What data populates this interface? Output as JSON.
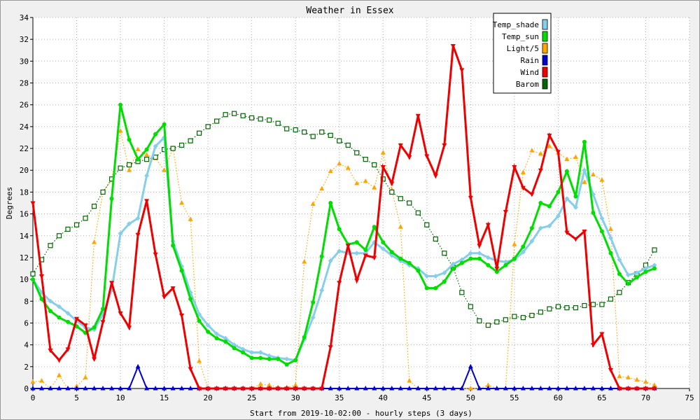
{
  "chart_data": {
    "type": "line",
    "title": "Weather in Essex",
    "xlabel": "Start from 2019-10-02:00 - hourly steps (3 days)",
    "ylabel": "Degrees",
    "xlim": [
      0,
      75
    ],
    "ylim": [
      0,
      34
    ],
    "x_ticks": [
      0,
      5,
      10,
      15,
      20,
      25,
      30,
      35,
      40,
      45,
      50,
      55,
      60,
      65,
      70,
      75
    ],
    "y_ticks": [
      0,
      2,
      4,
      6,
      8,
      10,
      12,
      14,
      16,
      18,
      20,
      22,
      24,
      26,
      28,
      30,
      32,
      34
    ],
    "grid": true,
    "legend_position": "top-right",
    "x": [
      0,
      1,
      2,
      3,
      4,
      5,
      6,
      7,
      8,
      9,
      10,
      11,
      12,
      13,
      14,
      15,
      16,
      17,
      18,
      19,
      20,
      21,
      22,
      23,
      24,
      25,
      26,
      27,
      28,
      29,
      30,
      31,
      32,
      33,
      34,
      35,
      36,
      37,
      38,
      39,
      40,
      41,
      42,
      43,
      44,
      45,
      46,
      47,
      48,
      49,
      50,
      51,
      52,
      53,
      54,
      55,
      56,
      57,
      58,
      59,
      60,
      61,
      62,
      63,
      64,
      65,
      66,
      67,
      68,
      69,
      70,
      71
    ],
    "series": [
      {
        "name": "Temp_shade",
        "color": "#87ceeb",
        "marker": "diamond",
        "values": [
          10,
          8.8,
          8,
          7.5,
          6.9,
          6.2,
          5.6,
          5.4,
          6.8,
          9,
          14.2,
          15.1,
          15.6,
          19.5,
          22.2,
          23,
          13.5,
          11.2,
          8.8,
          6.8,
          5.8,
          5,
          4.6,
          4,
          3.6,
          3.3,
          3.3,
          3,
          2.8,
          2.7,
          2.6,
          4.5,
          6.5,
          9,
          11.7,
          12.6,
          12.4,
          12.4,
          12.4,
          13.4,
          12.8,
          12.2,
          11.7,
          11.3,
          11,
          10.3,
          10.3,
          10.6,
          11.4,
          11.8,
          12.4,
          12.4,
          12,
          11.7,
          11.6,
          11.8,
          12.5,
          13.5,
          14.7,
          14.9,
          15.8,
          17.4,
          16.6,
          20,
          17.8,
          15.6,
          13.8,
          11.8,
          10.4,
          10.6,
          11,
          11.3
        ]
      },
      {
        "name": "Temp_sun",
        "color": "#00dd00",
        "marker": "circle",
        "values": [
          10,
          8.2,
          7.1,
          6.5,
          6.1,
          5.7,
          5.1,
          5.6,
          7.3,
          17.4,
          26,
          22.8,
          21,
          21.9,
          23.3,
          24.2,
          13.1,
          10.8,
          8.2,
          6.2,
          5.2,
          4.6,
          4.3,
          3.7,
          3.3,
          2.8,
          2.8,
          2.7,
          2.7,
          2.2,
          2.6,
          4.7,
          7.9,
          12.1,
          17,
          14.6,
          13.2,
          13.4,
          12.7,
          14.8,
          13.4,
          12.5,
          11.9,
          11.5,
          10.8,
          9.2,
          9.2,
          9.8,
          11,
          11.5,
          11.9,
          11.9,
          11.3,
          10.7,
          11.3,
          11.9,
          13,
          14.7,
          17,
          16.7,
          18,
          19.9,
          17.6,
          22.6,
          16.1,
          14.4,
          12.4,
          10.5,
          9.6,
          10.2,
          10.7,
          11
        ]
      },
      {
        "name": "Light/5",
        "color": "#ffa500",
        "marker": "triangle-up",
        "values": [
          0.6,
          0.7,
          0,
          1.2,
          0,
          0.2,
          1,
          13.4,
          18,
          19.1,
          23.6,
          20,
          21.9,
          21.4,
          21.1,
          20,
          22,
          17,
          15.5,
          2.5,
          0,
          0,
          0,
          0,
          0,
          0,
          0.4,
          0.3,
          0.1,
          0.1,
          0.3,
          11.6,
          16.9,
          18.3,
          19.9,
          20.6,
          20.2,
          18.8,
          19,
          18.4,
          21.6,
          18.2,
          14.8,
          0.7,
          0,
          0,
          0,
          0,
          0,
          0,
          0,
          0,
          0.3,
          0,
          0,
          13.2,
          19.8,
          21.8,
          21.5,
          22.2,
          21.6,
          21,
          21.2,
          18.9,
          19.6,
          19.1,
          14.6,
          1.1,
          1,
          0.8,
          0.6,
          0.3
        ]
      },
      {
        "name": "Rain",
        "color": "#0000cc",
        "marker": "triangle-up",
        "values": [
          0,
          0,
          0,
          0,
          0,
          0,
          0,
          0,
          0,
          0,
          0,
          0,
          2,
          0,
          0,
          0,
          0,
          0,
          0,
          0,
          0,
          0,
          0,
          0,
          0,
          0,
          0,
          0,
          0,
          0,
          0,
          0,
          0,
          0,
          0,
          0,
          0,
          0,
          0,
          0,
          0,
          0,
          0,
          0,
          0,
          0,
          0,
          0,
          0,
          0,
          2,
          0,
          0,
          0,
          0,
          0,
          0,
          0,
          0,
          0,
          0,
          0,
          0,
          0,
          0,
          0,
          0,
          0,
          0,
          0,
          0,
          0
        ]
      },
      {
        "name": "Wind",
        "color": "#ee0000",
        "marker": "triangle-down",
        "values": [
          17,
          10.3,
          3.5,
          2.6,
          3.6,
          6.4,
          5.8,
          2.7,
          6.1,
          9.7,
          6.9,
          5.6,
          14.1,
          17.2,
          12.3,
          8.4,
          9.2,
          6.7,
          1.8,
          0,
          0,
          0,
          0,
          0,
          0,
          0,
          0,
          0,
          0,
          0,
          0,
          0,
          0,
          0,
          3.8,
          9.7,
          13.1,
          9.9,
          12.2,
          12,
          20.3,
          18.8,
          22.3,
          21.2,
          25,
          21.3,
          19.5,
          22.3,
          31.4,
          29.2,
          17.5,
          13.1,
          15,
          11,
          16.2,
          20.3,
          18.4,
          17.8,
          20,
          23.2,
          21.7,
          14.3,
          13.7,
          14.4,
          4,
          5,
          1.7,
          0,
          0,
          0,
          0,
          0
        ]
      },
      {
        "name": "Barom",
        "color": "#006600",
        "marker": "square",
        "values": [
          10.5,
          11.8,
          13.1,
          14,
          14.6,
          15,
          15.6,
          16.7,
          18,
          19.2,
          20.2,
          20.5,
          20.8,
          21,
          21.2,
          21.9,
          22,
          22.3,
          22.7,
          23.4,
          24,
          24.5,
          25.1,
          25.2,
          25,
          24.8,
          24.7,
          24.6,
          24.3,
          23.8,
          23.7,
          23.5,
          23.1,
          23.5,
          23.2,
          22.7,
          22.3,
          21.6,
          21,
          20.5,
          19.2,
          18,
          17.4,
          17,
          16.1,
          15,
          13.7,
          12.4,
          11.1,
          8.8,
          7.5,
          6.2,
          5.8,
          6.1,
          6.3,
          6.6,
          6.5,
          6.7,
          7,
          7.3,
          7.5,
          7.4,
          7.4,
          7.6,
          7.7,
          7.7,
          8.2,
          8.8,
          9.7,
          10.5,
          11.3,
          12.7
        ]
      }
    ]
  }
}
